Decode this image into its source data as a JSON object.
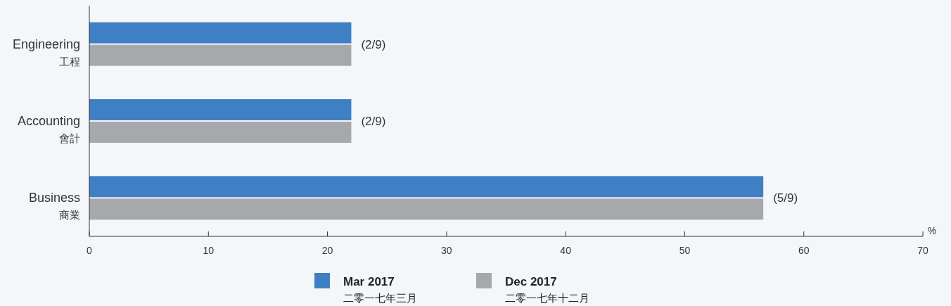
{
  "chart_data": {
    "type": "bar",
    "orientation": "horizontal",
    "categories": [
      "Engineering\n工程",
      "Accounting\n會計",
      "Business\n商業"
    ],
    "series": [
      {
        "name": "Mar 2017\n二零一七年三月",
        "color": "#3f80c4",
        "values": [
          22.0,
          22.0,
          56.6
        ],
        "value_labels": [
          "(2/9)",
          "(2/9)",
          "(5/9)"
        ]
      },
      {
        "name": "Dec 2017\n二零一七年十二月",
        "color": "#a7a8ab",
        "values": [
          22.0,
          22.0,
          56.6
        ]
      }
    ],
    "xlim": [
      0,
      70
    ],
    "xticks": [
      0,
      10,
      20,
      30,
      40,
      50,
      60,
      70
    ],
    "xlabel": "%",
    "grid": false,
    "legend": "bottom"
  }
}
